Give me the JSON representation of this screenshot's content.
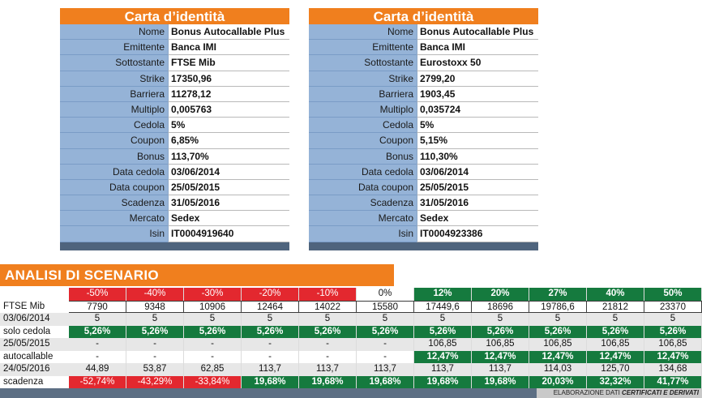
{
  "cards": [
    {
      "title": "Carta d’identità",
      "rows": [
        {
          "label": "Nome",
          "value": "Bonus Autocallable Plus"
        },
        {
          "label": "Emittente",
          "value": "Banca IMI"
        },
        {
          "label": "Sottostante",
          "value": "FTSE Mib"
        },
        {
          "label": "Strike",
          "value": "17350,96"
        },
        {
          "label": "Barriera",
          "value": "11278,12"
        },
        {
          "label": "Multiplo",
          "value": "0,005763"
        },
        {
          "label": "Cedola",
          "value": "5%"
        },
        {
          "label": "Coupon",
          "value": "6,85%"
        },
        {
          "label": "Bonus",
          "value": "113,70%"
        },
        {
          "label": "Data cedola",
          "value": "03/06/2014"
        },
        {
          "label": "Data coupon",
          "value": "25/05/2015"
        },
        {
          "label": "Scadenza",
          "value": "31/05/2016"
        },
        {
          "label": "Mercato",
          "value": "Sedex"
        },
        {
          "label": "Isin",
          "value": "IT0004919640"
        }
      ]
    },
    {
      "title": "Carta d’identità",
      "rows": [
        {
          "label": "Nome",
          "value": "Bonus Autocallable Plus"
        },
        {
          "label": "Emittente",
          "value": "Banca IMI"
        },
        {
          "label": "Sottostante",
          "value": "Eurostoxx 50"
        },
        {
          "label": "Strike",
          "value": "2799,20"
        },
        {
          "label": "Barriera",
          "value": "1903,45"
        },
        {
          "label": "Multiplo",
          "value": "0,035724"
        },
        {
          "label": "Cedola",
          "value": "5%"
        },
        {
          "label": "Coupon",
          "value": "5,15%"
        },
        {
          "label": "Bonus",
          "value": "110,30%"
        },
        {
          "label": "Data cedola",
          "value": "03/06/2014"
        },
        {
          "label": "Data coupon",
          "value": "25/05/2015"
        },
        {
          "label": "Scadenza",
          "value": "31/05/2016"
        },
        {
          "label": "Mercato",
          "value": "Sedex"
        },
        {
          "label": "Isin",
          "value": "IT0004923386"
        }
      ]
    }
  ],
  "scenario": {
    "title": "ANALISI DI SCENARIO",
    "header": [
      "-50%",
      "-40%",
      "-30%",
      "-20%",
      "-10%",
      "0%",
      "12%",
      "20%",
      "27%",
      "40%",
      "50%"
    ],
    "header_styles": [
      "red",
      "red",
      "red",
      "red",
      "red",
      "plain",
      "green",
      "green",
      "green",
      "green",
      "green"
    ],
    "rows": [
      {
        "label": "FTSE Mib",
        "cells": [
          "7790",
          "9348",
          "10906",
          "12464",
          "14022",
          "15580",
          "17449,6",
          "18696",
          "19786,6",
          "21812",
          "23370"
        ],
        "style": "bordered"
      },
      {
        "label": "03/06/2014",
        "cells": [
          "5",
          "5",
          "5",
          "5",
          "5",
          "5",
          "5",
          "5",
          "5",
          "5",
          "5"
        ],
        "style": "plain"
      },
      {
        "label": "solo cedola",
        "cells": [
          "5,26%",
          "5,26%",
          "5,26%",
          "5,26%",
          "5,26%",
          "5,26%",
          "5,26%",
          "5,26%",
          "5,26%",
          "5,26%",
          "5,26%"
        ],
        "style": "greenrow"
      },
      {
        "label": "25/05/2015",
        "cells": [
          "-",
          "-",
          "-",
          "-",
          "-",
          "-",
          "106,85",
          "106,85",
          "106,85",
          "106,85",
          "106,85"
        ],
        "style": "plain"
      },
      {
        "label": "autocallable",
        "cells": [
          "-",
          "-",
          "-",
          "-",
          "-",
          "-",
          "12,47%",
          "12,47%",
          "12,47%",
          "12,47%",
          "12,47%"
        ],
        "style": "autocall"
      },
      {
        "label": "24/05/2016",
        "cells": [
          "44,89",
          "53,87",
          "62,85",
          "113,7",
          "113,7",
          "113,7",
          "113,7",
          "113,7",
          "114,03",
          "125,70",
          "134,68"
        ],
        "style": "plain"
      },
      {
        "label": "scadenza",
        "cells": [
          "-52,74%",
          "-43,29%",
          "-33,84%",
          "19,68%",
          "19,68%",
          "19,68%",
          "19,68%",
          "19,68%",
          "20,03%",
          "32,32%",
          "41,77%"
        ],
        "style": "scadenza"
      }
    ]
  },
  "footer": {
    "prefix": "ELABORAZIONE DATI ",
    "emphasis": "CERTIFICATI E DERIVATI"
  },
  "colors": {
    "orange_header": "#f07f1e",
    "label_blue": "#95b3d7",
    "footer_blue": "#4f647d",
    "negative_red": "#e3282f",
    "positive_green": "#157a3e"
  }
}
